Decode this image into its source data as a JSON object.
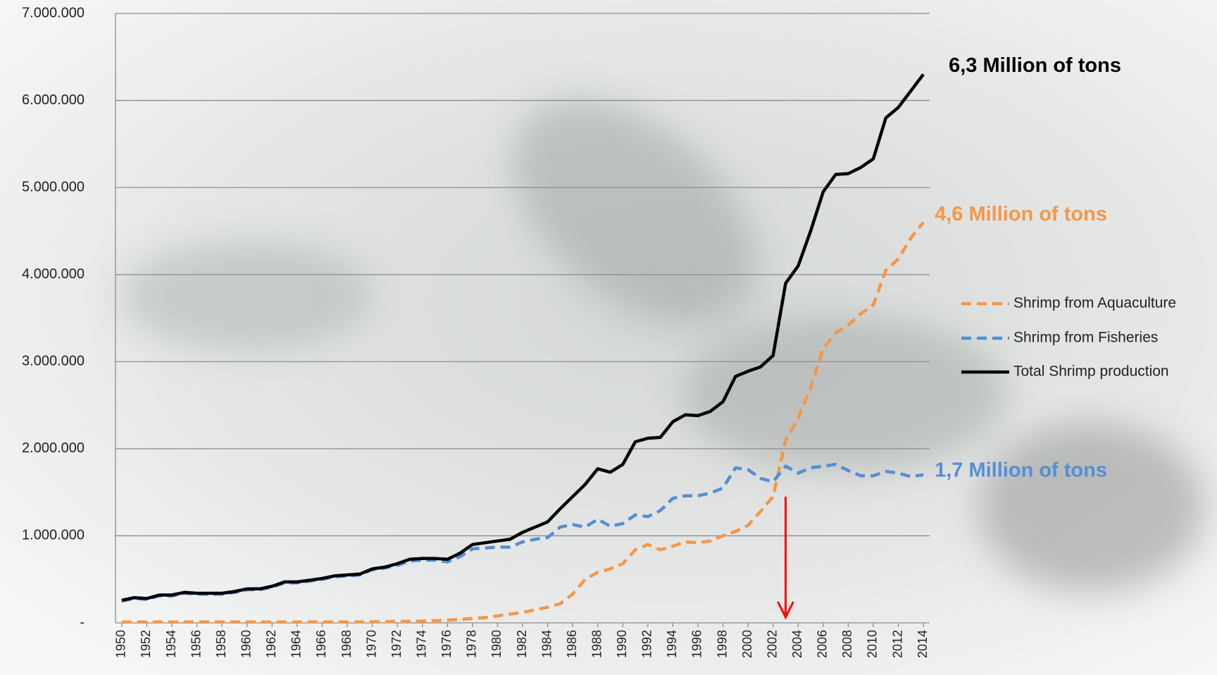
{
  "chart_data": {
    "type": "line",
    "x": [
      1950,
      1951,
      1952,
      1953,
      1954,
      1955,
      1956,
      1957,
      1958,
      1959,
      1960,
      1961,
      1962,
      1963,
      1964,
      1965,
      1966,
      1967,
      1968,
      1969,
      1970,
      1971,
      1972,
      1973,
      1974,
      1975,
      1976,
      1977,
      1978,
      1979,
      1980,
      1981,
      1982,
      1983,
      1984,
      1985,
      1986,
      1987,
      1988,
      1989,
      1990,
      1991,
      1992,
      1993,
      1994,
      1995,
      1996,
      1997,
      1998,
      1999,
      2000,
      2001,
      2002,
      2003,
      2004,
      2005,
      2006,
      2007,
      2008,
      2009,
      2010,
      2011,
      2012,
      2013,
      2014
    ],
    "xlim": [
      1950,
      2014
    ],
    "xticks": [
      1950,
      1952,
      1954,
      1956,
      1958,
      1960,
      1962,
      1964,
      1966,
      1968,
      1970,
      1972,
      1974,
      1976,
      1978,
      1980,
      1982,
      1984,
      1986,
      1988,
      1990,
      1992,
      1994,
      1996,
      1998,
      2000,
      2002,
      2004,
      2006,
      2008,
      2010,
      2012,
      2014
    ],
    "ylim": [
      0,
      7000000
    ],
    "yticks": [
      {
        "value": 0,
        "label": "-"
      },
      {
        "value": 1000000,
        "label": "1.000.000"
      },
      {
        "value": 2000000,
        "label": "2.000.000"
      },
      {
        "value": 3000000,
        "label": "3.000.000"
      },
      {
        "value": 4000000,
        "label": "4.000.000"
      },
      {
        "value": 5000000,
        "label": "5.000.000"
      },
      {
        "value": 6000000,
        "label": "6.000.000"
      },
      {
        "value": 7000000,
        "label": "7.000.000"
      }
    ],
    "grid": true,
    "legend": "right",
    "series": [
      {
        "name": "Shrimp from Aquaculture",
        "color": "#f79646",
        "dashed": true,
        "end_label": "4,6 Million of tons",
        "values": [
          10000,
          10000,
          10000,
          10000,
          10000,
          10000,
          10000,
          10000,
          10000,
          10000,
          10000,
          10000,
          10000,
          10000,
          10000,
          10000,
          10000,
          10000,
          10000,
          10000,
          12000,
          14000,
          16000,
          18000,
          20000,
          25000,
          30000,
          40000,
          50000,
          60000,
          80000,
          100000,
          120000,
          150000,
          180000,
          220000,
          330000,
          500000,
          580000,
          620000,
          680000,
          840000,
          900000,
          840000,
          880000,
          930000,
          920000,
          940000,
          1000000,
          1050000,
          1120000,
          1280000,
          1450000,
          2100000,
          2350000,
          2700000,
          3150000,
          3330000,
          3420000,
          3550000,
          3650000,
          4050000,
          4180000,
          4420000,
          4600000
        ]
      },
      {
        "name": "Shrimp from Fisheries",
        "color": "#558ed5",
        "dashed": true,
        "end_label": "1,7 Million of tons",
        "values": [
          250000,
          280000,
          270000,
          310000,
          310000,
          340000,
          330000,
          330000,
          330000,
          350000,
          380000,
          380000,
          410000,
          460000,
          460000,
          480000,
          500000,
          530000,
          540000,
          550000,
          610000,
          630000,
          660000,
          710000,
          720000,
          720000,
          700000,
          760000,
          850000,
          860000,
          870000,
          870000,
          930000,
          960000,
          980000,
          1100000,
          1130000,
          1100000,
          1190000,
          1110000,
          1140000,
          1240000,
          1220000,
          1290000,
          1430000,
          1460000,
          1460000,
          1490000,
          1550000,
          1780000,
          1760000,
          1660000,
          1620000,
          1800000,
          1720000,
          1780000,
          1800000,
          1820000,
          1750000,
          1690000,
          1690000,
          1740000,
          1720000,
          1680000,
          1700000
        ]
      },
      {
        "name": "Total Shrimp production",
        "color": "#000000",
        "dashed": false,
        "end_label": "6,3 Million of tons",
        "values": [
          260000,
          290000,
          280000,
          320000,
          320000,
          350000,
          340000,
          340000,
          340000,
          360000,
          390000,
          390000,
          420000,
          470000,
          470000,
          490000,
          510000,
          540000,
          550000,
          560000,
          620000,
          640000,
          680000,
          730000,
          740000,
          740000,
          730000,
          800000,
          900000,
          920000,
          940000,
          960000,
          1040000,
          1100000,
          1160000,
          1310000,
          1450000,
          1590000,
          1770000,
          1730000,
          1820000,
          2080000,
          2120000,
          2130000,
          2310000,
          2390000,
          2380000,
          2430000,
          2540000,
          2830000,
          2890000,
          2940000,
          3070000,
          3900000,
          4100000,
          4500000,
          4950000,
          5150000,
          5160000,
          5230000,
          5330000,
          5800000,
          5920000,
          6110000,
          6300000
        ]
      }
    ],
    "arrow": {
      "x": 2003,
      "y": [
        1450000,
        0
      ],
      "color": "#ff0000"
    }
  }
}
